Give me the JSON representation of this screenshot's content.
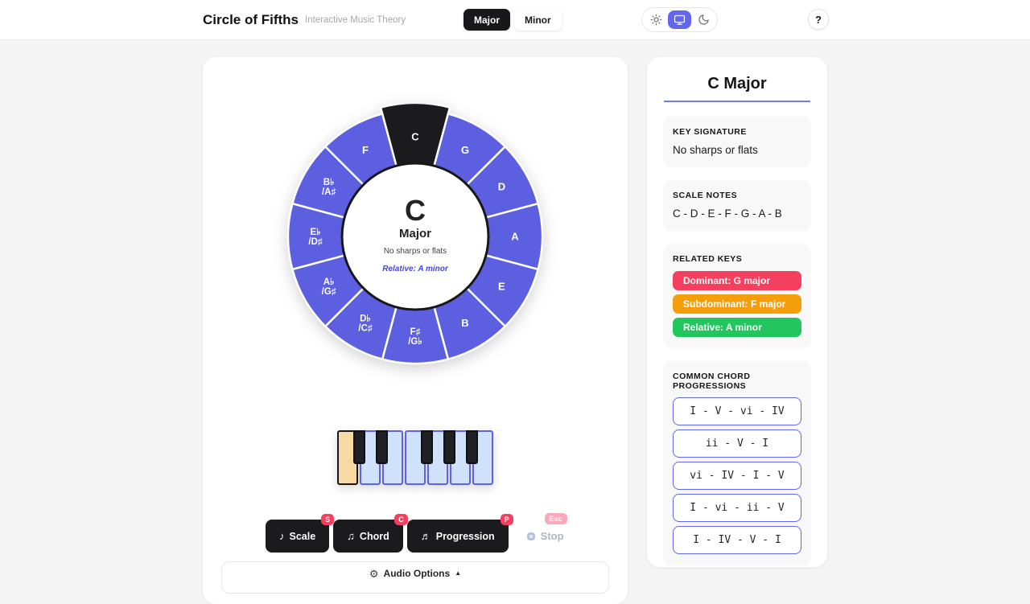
{
  "header": {
    "title": "Circle of Fifths",
    "subtitle": "Interactive Music Theory",
    "mode_toggle": {
      "major": "Major",
      "minor": "Minor",
      "selected": "Major"
    },
    "theme_toggle": {
      "options": [
        "light",
        "system",
        "dark"
      ],
      "selected": "system"
    },
    "help_label": "?"
  },
  "icons": {
    "sun": "sun-icon",
    "monitor": "monitor-icon",
    "moon": "moon-icon",
    "scale_note": "♪",
    "chord_note": "♫",
    "progression_note": "♬",
    "gear": "⚙",
    "collapse_caret": "▲"
  },
  "wheel": {
    "selected_key": "C",
    "colors": {
      "segment": "#5b5fe0",
      "selected_segment": "#1b1b1e",
      "divider": "#ffffff",
      "inner_ring": "#17171a"
    },
    "segments": [
      {
        "line1": "C",
        "selected": true
      },
      {
        "line1": "G"
      },
      {
        "line1": "D"
      },
      {
        "line1": "A"
      },
      {
        "line1": "E"
      },
      {
        "line1": "B"
      },
      {
        "line1": "F♯",
        "line2": "/G♭"
      },
      {
        "line1": "D♭",
        "line2": "/C♯"
      },
      {
        "line1": "A♭",
        "line2": "/G♯"
      },
      {
        "line1": "E♭",
        "line2": "/D♯"
      },
      {
        "line1": "B♭",
        "line2": "/A♯"
      },
      {
        "line1": "F"
      }
    ],
    "center": {
      "note": "C",
      "mode": "Major",
      "signature": "No sharps or flats",
      "relative": "Relative: A minor"
    }
  },
  "piano": {
    "white_key_count": 7,
    "highlighted_index": 0,
    "black_key_after": [
      0,
      1,
      3,
      4,
      5
    ],
    "highlight_color": "#f7d9a4",
    "key_color": "#cfe1fb"
  },
  "controls": {
    "scale": {
      "label": "Scale",
      "shortcut": "S"
    },
    "chord": {
      "label": "Chord",
      "shortcut": "C"
    },
    "progression": {
      "label": "Progression",
      "shortcut": "P"
    },
    "stop": {
      "label": "Stop",
      "shortcut": "Esc"
    }
  },
  "audio_options": {
    "label": "Audio Options"
  },
  "sidebar": {
    "title": "C Major",
    "key_signature": {
      "heading": "KEY SIGNATURE",
      "value": "No sharps or flats"
    },
    "scale_notes": {
      "heading": "SCALE NOTES",
      "value": "C - D - E - F - G - A - B"
    },
    "related_keys": {
      "heading": "RELATED KEYS",
      "items": [
        {
          "label": "Dominant: G major",
          "color": "#f43f5e"
        },
        {
          "label": "Subdominant: F major",
          "color": "#f59e0b"
        },
        {
          "label": "Relative: A minor",
          "color": "#22c55e"
        }
      ]
    },
    "progressions": {
      "heading": "COMMON CHORD PROGRESSIONS",
      "items": [
        "I - V - vi - IV",
        "ii - V - I",
        "vi - IV - I - V",
        "I - vi - ii - V",
        "I - IV - V - I"
      ]
    }
  }
}
